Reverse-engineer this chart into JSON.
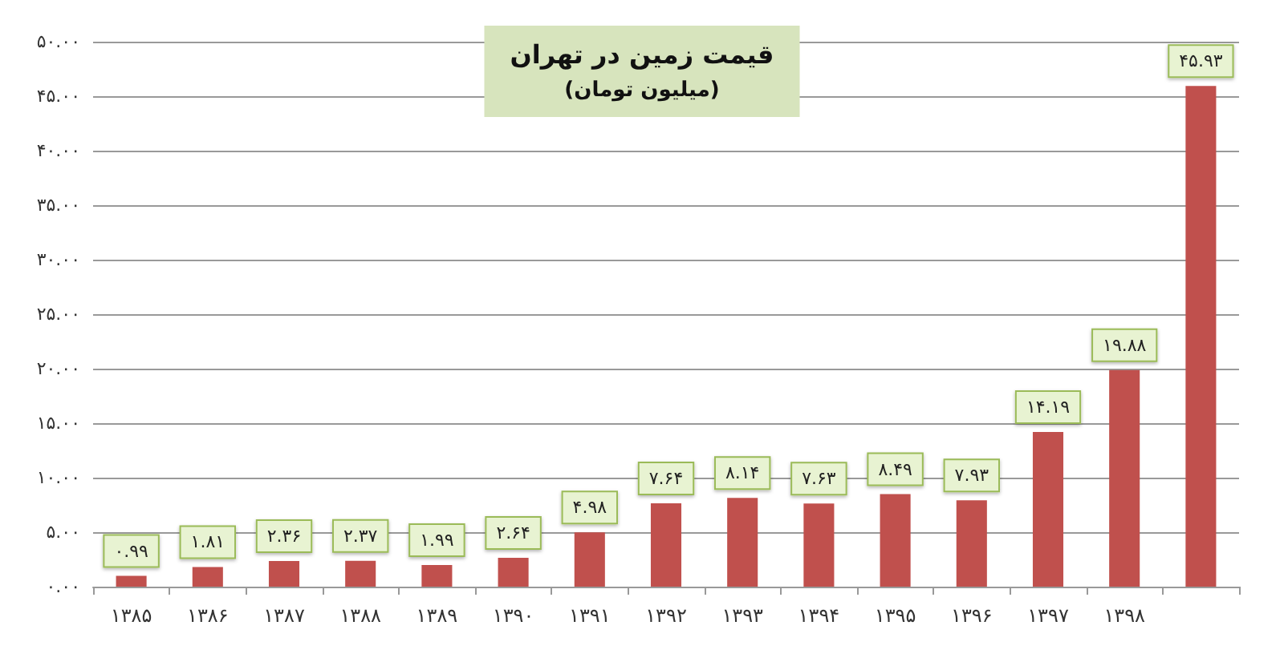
{
  "chart_data": {
    "type": "bar",
    "title": "قیمت زمین در تهران",
    "subtitle": "(میلیون تومان)",
    "categories": [
      "۱۳۸۵",
      "۱۳۸۶",
      "۱۳۸۷",
      "۱۳۸۸",
      "۱۳۸۹",
      "۱۳۹۰",
      "۱۳۹۱",
      "۱۳۹۲",
      "۱۳۹۳",
      "۱۳۹۴",
      "۱۳۹۵",
      "۱۳۹۶",
      "۱۳۹۷",
      "۱۳۹۸",
      null
    ],
    "values": [
      0.99,
      1.81,
      2.36,
      2.37,
      1.99,
      2.64,
      4.98,
      7.64,
      8.14,
      7.63,
      8.49,
      7.93,
      14.19,
      19.88,
      45.93
    ],
    "value_labels": [
      "۰.۹۹",
      "۱.۸۱",
      "۲.۳۶",
      "۲.۳۷",
      "۱.۹۹",
      "۲.۶۴",
      "۴.۹۸",
      "۷.۶۴",
      "۸.۱۴",
      "۷.۶۳",
      "۸.۴۹",
      "۷.۹۳",
      "۱۴.۱۹",
      "۱۹.۸۸",
      "۴۵.۹۳"
    ],
    "color": "#c0504d",
    "ylim": [
      0,
      50
    ],
    "yticks": [
      {
        "value": 0,
        "label": "۰.۰۰"
      },
      {
        "value": 5,
        "label": "۵.۰۰"
      },
      {
        "value": 10,
        "label": "۱۰.۰۰"
      },
      {
        "value": 15,
        "label": "۱۵.۰۰"
      },
      {
        "value": 20,
        "label": "۲۰.۰۰"
      },
      {
        "value": 25,
        "label": "۲۵.۰۰"
      },
      {
        "value": 30,
        "label": "۳۰.۰۰"
      },
      {
        "value": 35,
        "label": "۳۵.۰۰"
      },
      {
        "value": 40,
        "label": "۴۰.۰۰"
      },
      {
        "value": 45,
        "label": "۴۵.۰۰"
      },
      {
        "value": 50,
        "label": "۵۰.۰۰"
      }
    ],
    "grid": true
  }
}
